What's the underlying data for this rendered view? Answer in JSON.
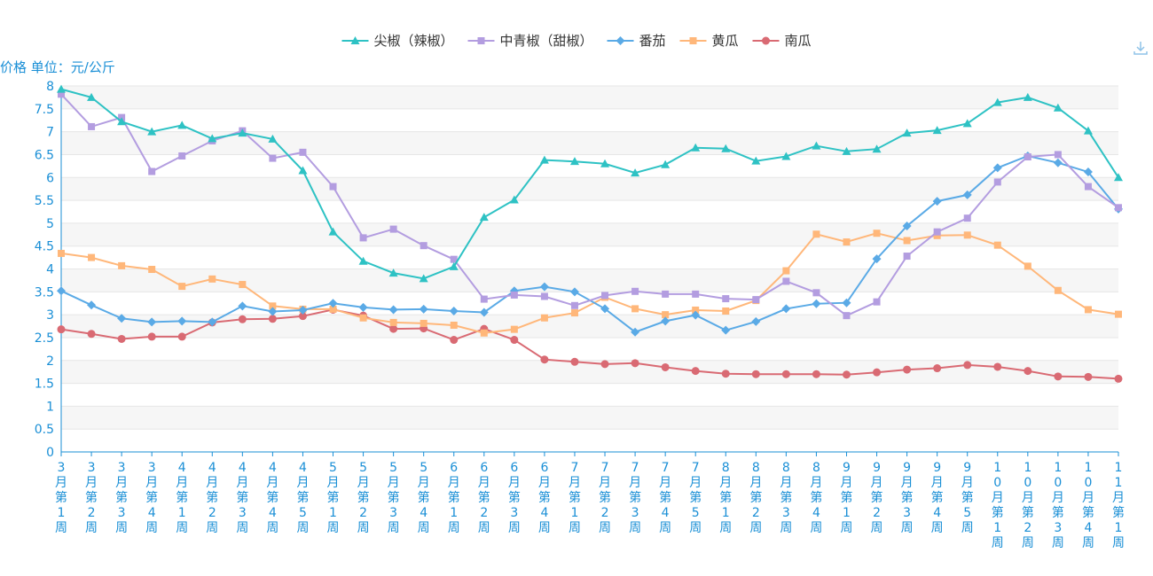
{
  "colors": {
    "accent": "#1a8fd6",
    "series": [
      "#2ec2c4",
      "#b39de0",
      "#5aaae6",
      "#ffb77a",
      "#d96a73"
    ]
  },
  "icons": {
    "download": "download-icon"
  },
  "chart_data": {
    "type": "line",
    "unit_label": "价格 单位：元/公斤",
    "ylim": [
      0,
      8
    ],
    "yticks": [
      "0",
      "0.5",
      "1",
      "1.5",
      "2",
      "2.5",
      "3",
      "3.5",
      "4",
      "4.5",
      "5",
      "5.5",
      "6",
      "6.5",
      "7",
      "7.5",
      "8"
    ],
    "grid": true,
    "legend_position": "top-center",
    "categories": [
      "3月第1周",
      "3月第2周",
      "3月第3周",
      "3月第4周",
      "4月第1周",
      "4月第2周",
      "4月第3周",
      "4月第4周",
      "4月第5周",
      "5月第1周",
      "5月第2周",
      "5月第3周",
      "5月第4周",
      "6月第1周",
      "6月第2周",
      "6月第3周",
      "6月第4周",
      "7月第1周",
      "7月第2周",
      "7月第3周",
      "7月第4周",
      "7月第5周",
      "8月第1周",
      "8月第2周",
      "8月第3周",
      "8月第4周",
      "9月第1周",
      "9月第2周",
      "9月第3周",
      "9月第4周",
      "9月第5周",
      "10月第1周",
      "10月第2周",
      "10月第3周",
      "10月第4周",
      "11月第1周"
    ],
    "series": [
      {
        "name": "尖椒（辣椒）",
        "marker": "triangle",
        "values": [
          7.93,
          7.75,
          7.22,
          7.0,
          7.14,
          6.85,
          6.97,
          6.84,
          6.15,
          4.81,
          4.17,
          3.91,
          3.79,
          4.05,
          5.13,
          5.51,
          6.38,
          6.35,
          6.3,
          6.1,
          6.28,
          6.65,
          6.63,
          6.36,
          6.46,
          6.69,
          6.57,
          6.62,
          6.97,
          7.03,
          7.18,
          7.64,
          7.75,
          7.52,
          7.02,
          6.0
        ]
      },
      {
        "name": "中青椒（甜椒）",
        "marker": "square",
        "values": [
          7.82,
          7.11,
          7.31,
          6.13,
          6.47,
          6.8,
          7.02,
          6.42,
          6.55,
          5.8,
          4.68,
          4.87,
          4.51,
          4.21,
          3.34,
          3.43,
          3.4,
          3.2,
          3.42,
          3.51,
          3.45,
          3.45,
          3.35,
          3.33,
          3.73,
          3.48,
          2.98,
          3.28,
          4.28,
          4.81,
          5.11,
          5.9,
          6.45,
          6.5,
          5.8,
          5.34
        ]
      },
      {
        "name": "番茄",
        "marker": "diamond",
        "values": [
          3.52,
          3.21,
          2.92,
          2.84,
          2.86,
          2.84,
          3.19,
          3.07,
          3.1,
          3.25,
          3.16,
          3.11,
          3.12,
          3.08,
          3.05,
          3.52,
          3.61,
          3.5,
          3.13,
          2.62,
          2.86,
          2.99,
          2.66,
          2.85,
          3.13,
          3.24,
          3.26,
          4.22,
          4.94,
          5.48,
          5.62,
          6.21,
          6.47,
          6.32,
          6.12,
          5.31
        ]
      },
      {
        "name": "黄瓜",
        "marker": "square",
        "values": [
          4.34,
          4.25,
          4.07,
          3.99,
          3.62,
          3.78,
          3.66,
          3.19,
          3.12,
          3.12,
          2.93,
          2.83,
          2.81,
          2.77,
          2.6,
          2.68,
          2.93,
          3.04,
          3.38,
          3.13,
          3.0,
          3.1,
          3.08,
          3.31,
          3.96,
          4.76,
          4.59,
          4.78,
          4.62,
          4.73,
          4.74,
          4.52,
          4.06,
          3.53,
          3.11,
          3.01
        ]
      },
      {
        "name": "南瓜",
        "marker": "circle",
        "values": [
          2.68,
          2.58,
          2.47,
          2.52,
          2.52,
          2.83,
          2.9,
          2.91,
          2.97,
          3.11,
          2.98,
          2.69,
          2.7,
          2.45,
          2.69,
          2.45,
          2.02,
          1.97,
          1.92,
          1.94,
          1.85,
          1.77,
          1.71,
          1.7,
          1.7,
          1.7,
          1.69,
          1.74,
          1.8,
          1.83,
          1.9,
          1.86,
          1.77,
          1.65,
          1.64,
          1.6
        ]
      }
    ]
  }
}
